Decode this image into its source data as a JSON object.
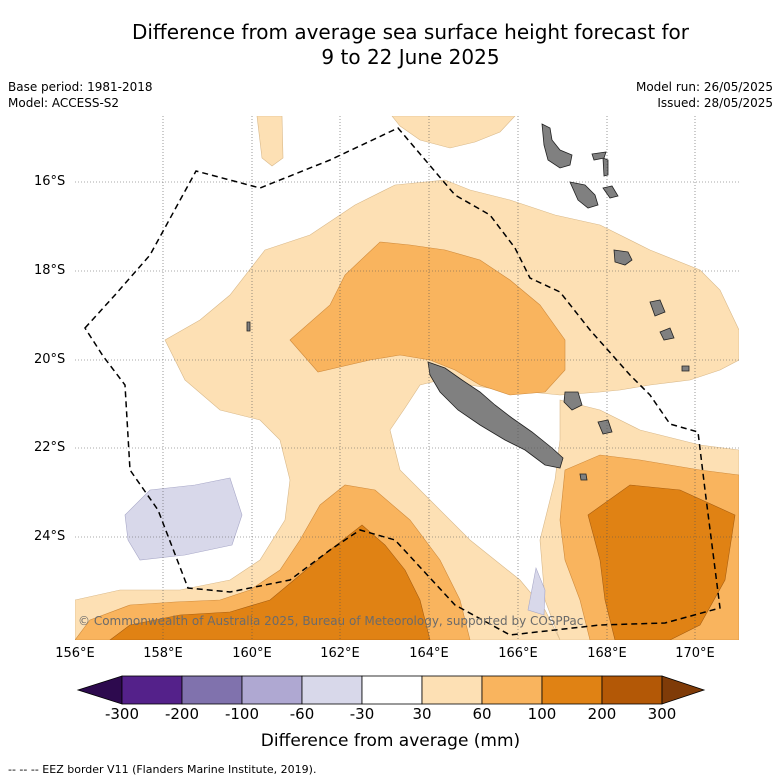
{
  "title_line1": "Difference from average sea surface height forecast for",
  "title_line2": "9 to 22 June 2025",
  "meta_left": {
    "base_period": "Base period: 1981-2018",
    "model": "Model: ACCESS-S2"
  },
  "meta_right": {
    "model_run": "Model run: 26/05/2025",
    "issued": "Issued: 28/05/2025"
  },
  "latitudes": [
    "16°S",
    "18°S",
    "20°S",
    "22°S",
    "24°S"
  ],
  "longitudes": [
    "156°E",
    "158°E",
    "160°E",
    "162°E",
    "164°E",
    "166°E",
    "168°E",
    "170°E"
  ],
  "copyright": "© Commonwealth of Australia 2025, Bureau of Meteorology, supported by COSPPac",
  "colorbar": {
    "ticks": [
      "-300",
      "-200",
      "-100",
      "-60",
      "-30",
      "30",
      "60",
      "100",
      "200",
      "300"
    ],
    "colors": {
      "under": "#2d0a4e",
      "c1": "#54218a",
      "c2": "#8072ad",
      "c3": "#afa8d2",
      "c4": "#d8d8ea",
      "c5": "#ffffff",
      "c6": "#fde0b4",
      "c7": "#f9b45e",
      "c8": "#e08214",
      "c9": "#b35806",
      "over": "#7f3b08"
    },
    "label": "Difference from average (mm)"
  },
  "land_color": "#808080",
  "footnote": "--  --  -- EEZ border V11 (Flanders Marine Institute, 2019)."
}
